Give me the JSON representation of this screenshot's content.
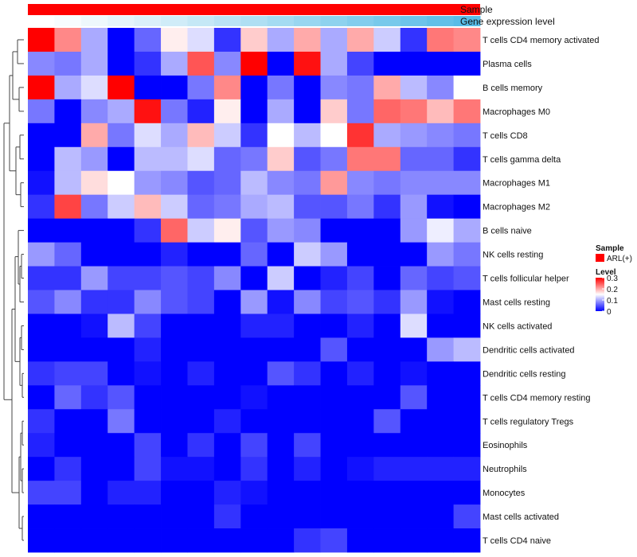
{
  "chart_data": {
    "type": "heatmap",
    "annotation_rows": [
      {
        "name": "Sample",
        "color": "#ff0000"
      },
      {
        "name": "Gene expression level",
        "colors": [
          "#ffffff",
          "#f7fcfe",
          "#eef8fc",
          "#e4f4fb",
          "#dbf0fa",
          "#d0ecf8",
          "#c5e8f6",
          "#bae3f5",
          "#afdff3",
          "#a4dbf2",
          "#99d6f0",
          "#8ed2ee",
          "#83cded",
          "#78c9eb",
          "#6dc4ea",
          "#62c0e8",
          "#58bce7"
        ]
      }
    ],
    "rows": [
      "T cells CD4 memory activated",
      "Plasma cells",
      "B cells memory",
      "Macrophages M0",
      "T cells CD8",
      "T cells gamma delta",
      "Macrophages M1",
      "Macrophages M2",
      "B cells naive",
      "NK cells resting",
      "T cells follicular helper",
      "Mast cells resting",
      "NK cells activated",
      "Dendritic cells activated",
      "Dendritic cells resting",
      "T cells CD4 memory resting",
      "T cells regulatory  Tregs",
      "Eosinophils",
      "Neutrophils",
      "Monocytes",
      "Mast cells activated",
      "T cells CD4 naive"
    ],
    "values": [
      [
        0.3,
        0.22,
        0.1,
        0.0,
        0.06,
        0.16,
        0.13,
        0.03,
        0.18,
        0.1,
        0.2,
        0.1,
        0.2,
        0.12,
        0.03,
        0.23,
        0.22
      ],
      [
        0.08,
        0.07,
        0.1,
        0.0,
        0.03,
        0.1,
        0.25,
        0.08,
        0.3,
        0.0,
        0.29,
        0.1,
        0.04,
        0.0,
        0.0,
        0.0,
        0.0
      ],
      [
        0.3,
        0.1,
        0.13,
        0.3,
        0.0,
        0.0,
        0.07,
        0.22,
        0.0,
        0.07,
        0.0,
        0.08,
        0.07,
        0.2,
        0.11,
        0.08,
        0.15
      ],
      [
        0.07,
        0.0,
        0.08,
        0.1,
        0.29,
        0.07,
        0.02,
        0.16,
        0.0,
        0.1,
        0.0,
        0.18,
        0.07,
        0.24,
        0.23,
        0.19,
        0.23
      ],
      [
        0.0,
        0.0,
        0.2,
        0.07,
        0.13,
        0.1,
        0.19,
        0.12,
        0.03,
        0.15,
        0.11,
        0.15,
        0.27,
        0.1,
        0.09,
        0.08,
        0.07
      ],
      [
        0.0,
        0.11,
        0.09,
        0.0,
        0.11,
        0.11,
        0.13,
        0.06,
        0.07,
        0.18,
        0.05,
        0.07,
        0.23,
        0.23,
        0.06,
        0.06,
        0.03
      ],
      [
        0.01,
        0.11,
        0.17,
        0.15,
        0.09,
        0.08,
        0.05,
        0.06,
        0.11,
        0.08,
        0.07,
        0.21,
        0.08,
        0.07,
        0.08,
        0.08,
        0.08
      ],
      [
        0.03,
        0.26,
        0.07,
        0.12,
        0.19,
        0.12,
        0.06,
        0.07,
        0.1,
        0.11,
        0.05,
        0.05,
        0.07,
        0.03,
        0.09,
        0.01,
        0.0
      ],
      [
        0.0,
        0.0,
        0.0,
        0.0,
        0.03,
        0.24,
        0.12,
        0.16,
        0.05,
        0.09,
        0.08,
        0.0,
        0.0,
        0.0,
        0.09,
        0.14,
        0.1
      ],
      [
        0.09,
        0.06,
        0.0,
        0.0,
        0.0,
        0.02,
        0.0,
        0.0,
        0.06,
        0.0,
        0.12,
        0.09,
        0.0,
        0.0,
        0.0,
        0.09,
        0.07
      ],
      [
        0.03,
        0.03,
        0.09,
        0.04,
        0.04,
        0.05,
        0.04,
        0.08,
        0.0,
        0.12,
        0.0,
        0.02,
        0.04,
        0.0,
        0.06,
        0.04,
        0.05
      ],
      [
        0.05,
        0.08,
        0.03,
        0.03,
        0.08,
        0.05,
        0.04,
        0.0,
        0.09,
        0.01,
        0.08,
        0.04,
        0.05,
        0.03,
        0.09,
        0.01,
        0.0
      ],
      [
        0.0,
        0.0,
        0.01,
        0.11,
        0.04,
        0.0,
        0.0,
        0.0,
        0.02,
        0.02,
        0.0,
        0.0,
        0.02,
        0.0,
        0.13,
        0.0,
        0.0
      ],
      [
        0.0,
        0.0,
        0.0,
        0.0,
        0.02,
        0.0,
        0.0,
        0.0,
        0.0,
        0.0,
        0.0,
        0.05,
        0.0,
        0.0,
        0.0,
        0.09,
        0.11
      ],
      [
        0.03,
        0.04,
        0.04,
        0.0,
        0.01,
        0.0,
        0.02,
        0.0,
        0.0,
        0.05,
        0.03,
        0.0,
        0.02,
        0.0,
        0.01,
        0.0,
        0.0
      ],
      [
        0.0,
        0.06,
        0.03,
        0.05,
        0.0,
        0.0,
        0.0,
        0.0,
        0.01,
        0.0,
        0.0,
        0.0,
        0.0,
        0.0,
        0.05,
        0.0,
        0.0
      ],
      [
        0.03,
        0.0,
        0.0,
        0.07,
        0.0,
        0.0,
        0.0,
        0.02,
        0.0,
        0.0,
        0.0,
        0.0,
        0.0,
        0.05,
        0.0,
        0.0,
        0.0
      ],
      [
        0.02,
        0.0,
        0.0,
        0.0,
        0.04,
        0.0,
        0.03,
        0.0,
        0.04,
        0.0,
        0.04,
        0.0,
        0.0,
        0.0,
        0.0,
        0.0,
        0.0
      ],
      [
        0.0,
        0.03,
        0.0,
        0.0,
        0.04,
        0.01,
        0.01,
        0.0,
        0.03,
        0.0,
        0.02,
        0.0,
        0.01,
        0.02,
        0.02,
        0.02,
        0.02
      ],
      [
        0.04,
        0.04,
        0.0,
        0.02,
        0.02,
        0.0,
        0.0,
        0.02,
        0.01,
        0.0,
        0.0,
        0.0,
        0.0,
        0.0,
        0.0,
        0.0,
        0.0
      ],
      [
        0.0,
        0.0,
        0.0,
        0.0,
        0.0,
        0.0,
        0.0,
        0.03,
        0.0,
        0.0,
        0.0,
        0.0,
        0.0,
        0.0,
        0.0,
        0.0,
        0.04
      ],
      [
        0.0,
        0.0,
        0.0,
        0.0,
        0.0,
        0.0,
        0.0,
        0.0,
        0.0,
        0.0,
        0.03,
        0.04,
        0.0,
        0.0,
        0.0,
        0.0,
        0.0
      ]
    ],
    "color_scale": {
      "low": "#0000ff",
      "mid": "#ffffff",
      "high": "#ff0000",
      "min": 0,
      "mid_value": 0.15,
      "max": 0.3
    },
    "legend": {
      "sample_title": "Sample",
      "sample_entries": [
        {
          "label": "ARL(+)",
          "color": "#ff0000"
        }
      ],
      "level_title": "Level",
      "level_ticks": [
        {
          "label": "0.3",
          "value": 0.3
        },
        {
          "label": "0.2",
          "value": 0.2
        },
        {
          "label": "0.1",
          "value": 0.1
        },
        {
          "label": "0",
          "value": 0
        }
      ],
      "placement": "right"
    },
    "row_dendrogram": true,
    "title": "",
    "xlabel": "",
    "ylabel": ""
  }
}
